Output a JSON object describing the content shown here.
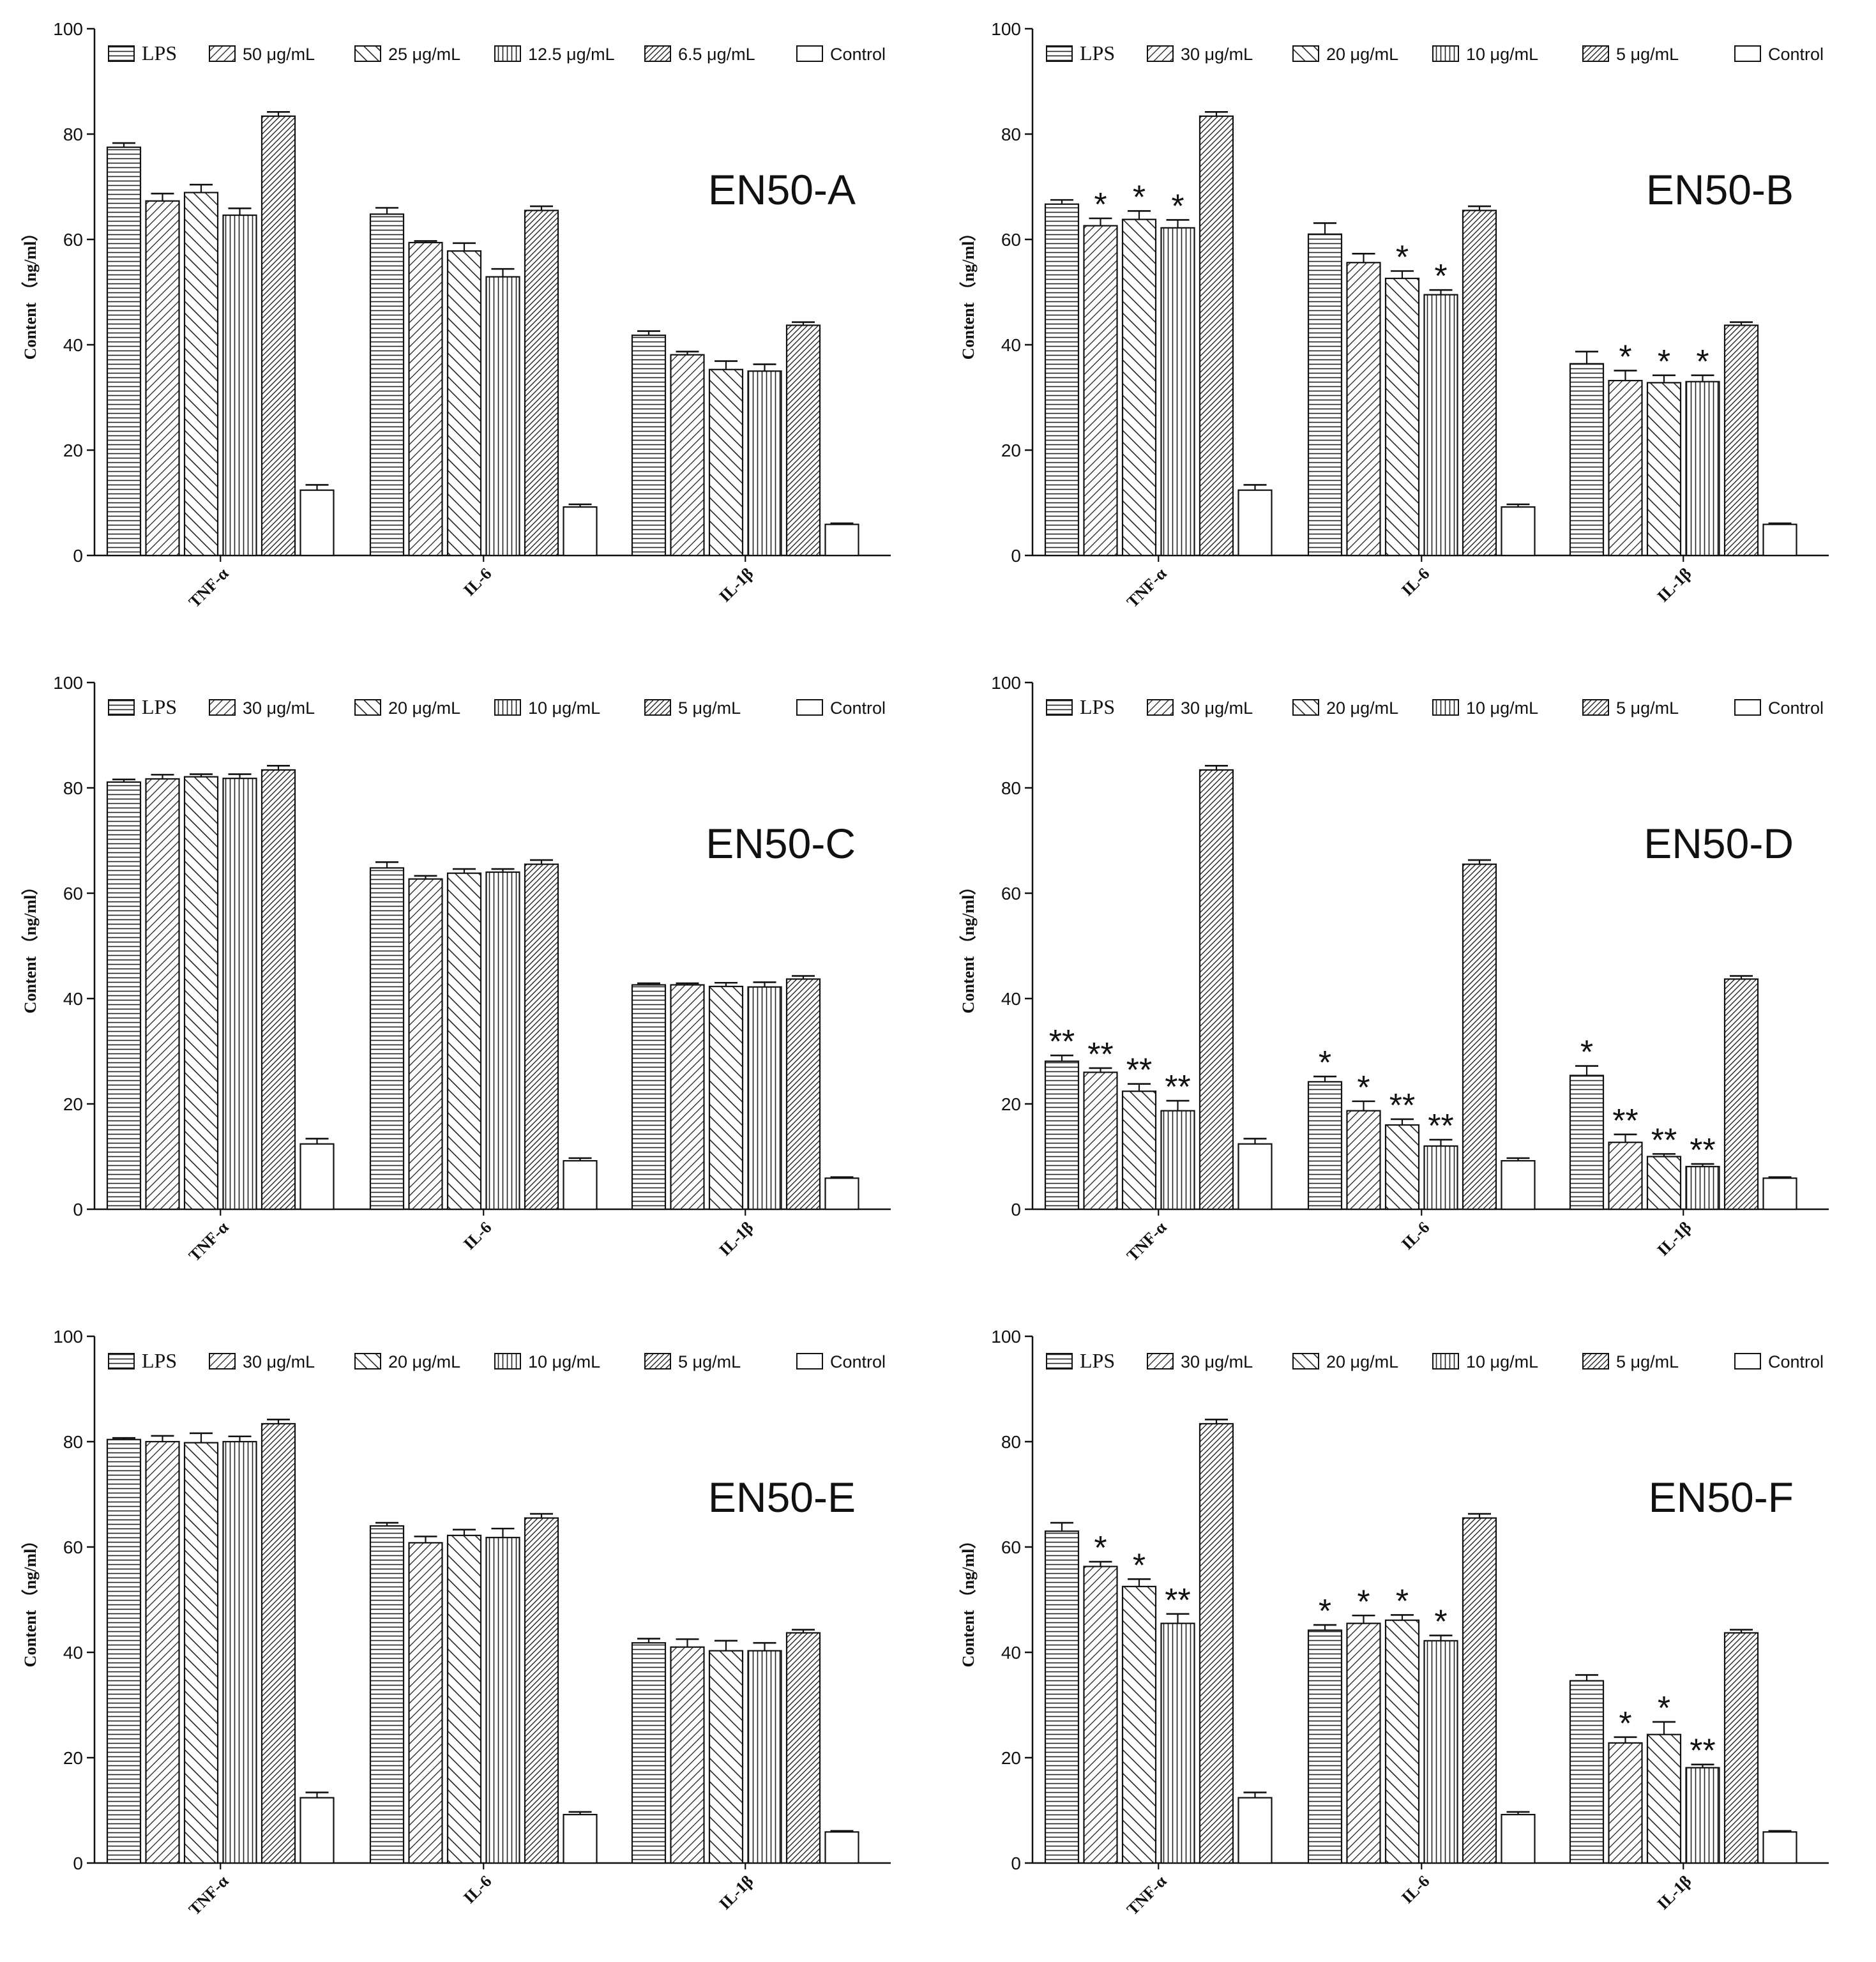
{
  "figure": {
    "y_axis_label": "Content （ng/ml）",
    "y_ticks": [
      0,
      20,
      40,
      60,
      80,
      100
    ],
    "categories": [
      "TNF-α",
      "IL-6",
      "IL-1β"
    ]
  },
  "chart_data": [
    {
      "type": "bar",
      "title": "EN50-A",
      "ylabel": "Content （ng/ml）",
      "ylim": [
        0,
        100
      ],
      "categories": [
        "TNF-α",
        "IL-6",
        "IL-1β"
      ],
      "series": [
        {
          "name": "LPS",
          "values": [
            77.5,
            64.8,
            41.8
          ],
          "errors": [
            0.8,
            1.2,
            0.8
          ],
          "pattern": "hlines",
          "sig": [
            "",
            "",
            ""
          ]
        },
        {
          "name": "50 μg/mL",
          "values": [
            67.3,
            59.4,
            38.1
          ],
          "errors": [
            1.4,
            0.3,
            0.6
          ],
          "pattern": "diag-right",
          "sig": [
            "",
            "",
            ""
          ]
        },
        {
          "name": "25 μg/mL",
          "values": [
            68.9,
            57.8,
            35.3
          ],
          "errors": [
            1.5,
            1.5,
            1.6
          ],
          "pattern": "diag-left",
          "sig": [
            "",
            "",
            ""
          ]
        },
        {
          "name": "12.5 μg/mL",
          "values": [
            64.6,
            52.9,
            35.0
          ],
          "errors": [
            1.3,
            1.5,
            1.3
          ],
          "pattern": "vlines",
          "sig": [
            "",
            "",
            ""
          ]
        },
        {
          "name": "6.5 μg/mL",
          "values": [
            83.4,
            65.5,
            43.7
          ],
          "errors": [
            0.8,
            0.8,
            0.6
          ],
          "pattern": "dense-diag",
          "sig": [
            "",
            "",
            ""
          ]
        },
        {
          "name": "Control",
          "values": [
            12.4,
            9.2,
            5.9
          ],
          "errors": [
            1.0,
            0.5,
            0.2
          ],
          "pattern": "empty",
          "sig": [
            "",
            "",
            ""
          ]
        }
      ]
    },
    {
      "type": "bar",
      "title": "EN50-B",
      "ylabel": "Content （ng/ml）",
      "ylim": [
        0,
        100
      ],
      "categories": [
        "TNF-α",
        "IL-6",
        "IL-1β"
      ],
      "series": [
        {
          "name": "LPS",
          "values": [
            66.7,
            61.0,
            36.4
          ],
          "errors": [
            0.8,
            2.1,
            2.3
          ],
          "pattern": "hlines",
          "sig": [
            "",
            "",
            ""
          ]
        },
        {
          "name": "30 μg/mL",
          "values": [
            62.6,
            55.6,
            33.2
          ],
          "errors": [
            1.4,
            1.7,
            1.9
          ],
          "pattern": "diag-right",
          "sig": [
            "*",
            "",
            "*"
          ]
        },
        {
          "name": "20 μg/mL",
          "values": [
            63.8,
            52.6,
            32.8
          ],
          "errors": [
            1.6,
            1.4,
            1.4
          ],
          "pattern": "diag-left",
          "sig": [
            "*",
            "*",
            "*"
          ]
        },
        {
          "name": "10 μg/mL",
          "values": [
            62.2,
            49.5,
            33.0
          ],
          "errors": [
            1.5,
            0.9,
            1.2
          ],
          "pattern": "vlines",
          "sig": [
            "*",
            "*",
            "*"
          ]
        },
        {
          "name": "5 μg/mL",
          "values": [
            83.4,
            65.5,
            43.7
          ],
          "errors": [
            0.8,
            0.8,
            0.6
          ],
          "pattern": "dense-diag",
          "sig": [
            "",
            "",
            ""
          ]
        },
        {
          "name": "Control",
          "values": [
            12.4,
            9.2,
            5.9
          ],
          "errors": [
            1.0,
            0.5,
            0.2
          ],
          "pattern": "empty",
          "sig": [
            "",
            "",
            ""
          ]
        }
      ]
    },
    {
      "type": "bar",
      "title": "EN50-C",
      "ylabel": "Content （ng/ml）",
      "ylim": [
        0,
        100
      ],
      "categories": [
        "TNF-α",
        "IL-6",
        "IL-1β"
      ],
      "series": [
        {
          "name": "LPS",
          "values": [
            81.1,
            64.8,
            42.6
          ],
          "errors": [
            0.5,
            1.1,
            0.3
          ],
          "pattern": "hlines",
          "sig": [
            "",
            "",
            ""
          ]
        },
        {
          "name": "30 μg/mL",
          "values": [
            81.7,
            62.7,
            42.6
          ],
          "errors": [
            0.8,
            0.6,
            0.3
          ],
          "pattern": "diag-right",
          "sig": [
            "",
            "",
            ""
          ]
        },
        {
          "name": "20 μg/mL",
          "values": [
            82.1,
            63.8,
            42.3
          ],
          "errors": [
            0.5,
            0.8,
            0.7
          ],
          "pattern": "diag-left",
          "sig": [
            "",
            "",
            ""
          ]
        },
        {
          "name": "10 μg/mL",
          "values": [
            81.8,
            64.0,
            42.2
          ],
          "errors": [
            0.8,
            0.6,
            0.9
          ],
          "pattern": "vlines",
          "sig": [
            "",
            "",
            ""
          ]
        },
        {
          "name": "5 μg/mL",
          "values": [
            83.4,
            65.5,
            43.7
          ],
          "errors": [
            0.8,
            0.8,
            0.6
          ],
          "pattern": "dense-diag",
          "sig": [
            "",
            "",
            ""
          ]
        },
        {
          "name": "Control",
          "values": [
            12.4,
            9.2,
            5.9
          ],
          "errors": [
            1.0,
            0.5,
            0.2
          ],
          "pattern": "empty",
          "sig": [
            "",
            "",
            ""
          ]
        }
      ]
    },
    {
      "type": "bar",
      "title": "EN50-D",
      "ylabel": "Content （ng/ml）",
      "ylim": [
        0,
        100
      ],
      "categories": [
        "TNF-α",
        "IL-6",
        "IL-1β"
      ],
      "series": [
        {
          "name": "LPS",
          "values": [
            28.1,
            24.2,
            25.4
          ],
          "errors": [
            1.1,
            1.0,
            1.8
          ],
          "pattern": "hlines",
          "sig": [
            "**",
            "*",
            "*"
          ]
        },
        {
          "name": "30 μg/mL",
          "values": [
            26.0,
            18.7,
            12.7
          ],
          "errors": [
            0.8,
            1.8,
            1.5
          ],
          "pattern": "diag-right",
          "sig": [
            "**",
            "*",
            "**"
          ]
        },
        {
          "name": "20 μg/mL",
          "values": [
            22.4,
            16.0,
            10.0
          ],
          "errors": [
            1.4,
            1.1,
            0.5
          ],
          "pattern": "diag-left",
          "sig": [
            "**",
            "**",
            "**"
          ]
        },
        {
          "name": "10 μg/mL",
          "values": [
            18.7,
            12.0,
            8.1
          ],
          "errors": [
            1.9,
            1.2,
            0.5
          ],
          "pattern": "vlines",
          "sig": [
            "**",
            "**",
            "**"
          ]
        },
        {
          "name": "5 μg/mL",
          "values": [
            83.4,
            65.5,
            43.7
          ],
          "errors": [
            0.8,
            0.8,
            0.6
          ],
          "pattern": "dense-diag",
          "sig": [
            "",
            "",
            ""
          ]
        },
        {
          "name": "Control",
          "values": [
            12.4,
            9.2,
            5.9
          ],
          "errors": [
            1.0,
            0.5,
            0.2
          ],
          "pattern": "empty",
          "sig": [
            "",
            "",
            ""
          ]
        }
      ]
    },
    {
      "type": "bar",
      "title": "EN50-E",
      "ylabel": "Content （ng/ml）",
      "ylim": [
        0,
        100
      ],
      "categories": [
        "TNF-α",
        "IL-6",
        "IL-1β"
      ],
      "series": [
        {
          "name": "LPS",
          "values": [
            80.4,
            64.0,
            41.8
          ],
          "errors": [
            0.3,
            0.6,
            0.8
          ],
          "pattern": "hlines",
          "sig": [
            "",
            "",
            ""
          ]
        },
        {
          "name": "30 μg/mL",
          "values": [
            80.0,
            60.8,
            41.0
          ],
          "errors": [
            1.1,
            1.2,
            1.5
          ],
          "pattern": "diag-right",
          "sig": [
            "",
            "",
            ""
          ]
        },
        {
          "name": "20 μg/mL",
          "values": [
            79.8,
            62.2,
            40.3
          ],
          "errors": [
            1.8,
            1.1,
            1.9
          ],
          "pattern": "diag-left",
          "sig": [
            "",
            "",
            ""
          ]
        },
        {
          "name": "10 μg/mL",
          "values": [
            80.0,
            61.8,
            40.3
          ],
          "errors": [
            1.0,
            1.7,
            1.5
          ],
          "pattern": "vlines",
          "sig": [
            "",
            "",
            ""
          ]
        },
        {
          "name": "5 μg/mL",
          "values": [
            83.4,
            65.5,
            43.7
          ],
          "errors": [
            0.8,
            0.8,
            0.6
          ],
          "pattern": "dense-diag",
          "sig": [
            "",
            "",
            ""
          ]
        },
        {
          "name": "Control",
          "values": [
            12.4,
            9.2,
            5.9
          ],
          "errors": [
            1.0,
            0.5,
            0.2
          ],
          "pattern": "empty",
          "sig": [
            "",
            "",
            ""
          ]
        }
      ]
    },
    {
      "type": "bar",
      "title": "EN50-F",
      "ylabel": "Content （ng/ml）",
      "ylim": [
        0,
        100
      ],
      "categories": [
        "TNF-α",
        "IL-6",
        "IL-1β"
      ],
      "series": [
        {
          "name": "LPS",
          "values": [
            63.0,
            44.2,
            34.6
          ],
          "errors": [
            1.6,
            1.0,
            1.1
          ],
          "pattern": "hlines",
          "sig": [
            "",
            "*",
            ""
          ]
        },
        {
          "name": "30 μg/mL",
          "values": [
            56.3,
            45.5,
            22.8
          ],
          "errors": [
            0.9,
            1.5,
            1.1
          ],
          "pattern": "diag-right",
          "sig": [
            "*",
            "*",
            "*"
          ]
        },
        {
          "name": "20 μg/mL",
          "values": [
            52.5,
            46.1,
            24.4
          ],
          "errors": [
            1.4,
            1.0,
            2.4
          ],
          "pattern": "diag-left",
          "sig": [
            "*",
            "*",
            "*"
          ]
        },
        {
          "name": "10 μg/mL",
          "values": [
            45.5,
            42.2,
            18.1
          ],
          "errors": [
            1.8,
            1.0,
            0.6
          ],
          "pattern": "vlines",
          "sig": [
            "**",
            "*",
            "**"
          ]
        },
        {
          "name": "5 μg/mL",
          "values": [
            83.4,
            65.5,
            43.7
          ],
          "errors": [
            0.8,
            0.8,
            0.6
          ],
          "pattern": "dense-diag",
          "sig": [
            "",
            "",
            ""
          ]
        },
        {
          "name": "Control",
          "values": [
            12.4,
            9.2,
            5.9
          ],
          "errors": [
            1.0,
            0.5,
            0.2
          ],
          "pattern": "empty",
          "sig": [
            "",
            "",
            ""
          ]
        }
      ]
    }
  ]
}
